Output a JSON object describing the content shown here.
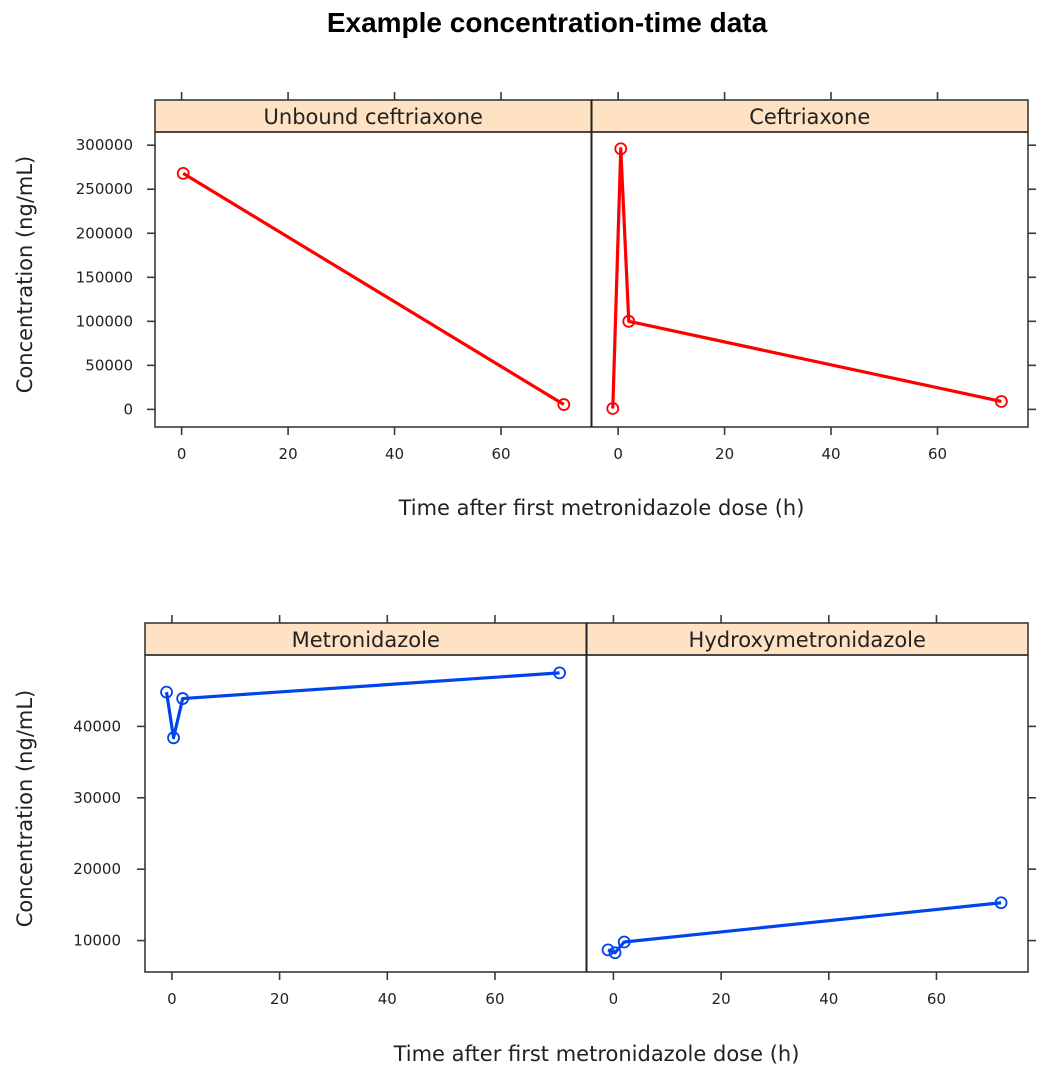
{
  "title": "Example concentration-time data",
  "chart_data": [
    {
      "type": "line",
      "xlabel": "Time after first metronidazole dose (h)",
      "ylabel": "Concentration (ng/mL)",
      "xlim": [
        -5,
        77
      ],
      "ylim": [
        -20000,
        315000
      ],
      "xticks": [
        0,
        20,
        40,
        60
      ],
      "yticks": [
        0,
        50000,
        100000,
        150000,
        200000,
        250000,
        300000
      ],
      "color": "#ff0000",
      "panels": [
        {
          "name": "Unbound ceftriaxone",
          "x": [
            0.3,
            71.8
          ],
          "y": [
            268000,
            5500
          ]
        },
        {
          "name": "Ceftriaxone",
          "x": [
            -1,
            0.5,
            2,
            72
          ],
          "y": [
            1000,
            296000,
            100000,
            9000
          ]
        }
      ]
    },
    {
      "type": "line",
      "xlabel": "Time after first metronidazole dose (h)",
      "ylabel": "Concentration (ng/mL)",
      "xlim": [
        -5,
        77
      ],
      "ylim": [
        5600,
        50000
      ],
      "xticks": [
        0,
        20,
        40,
        60
      ],
      "yticks": [
        10000,
        20000,
        30000,
        40000
      ],
      "color": "#0044ee",
      "panels": [
        {
          "name": "Metronidazole",
          "x": [
            -1,
            0.3,
            2,
            72
          ],
          "y": [
            44800,
            38400,
            43900,
            47500
          ]
        },
        {
          "name": "Hydroxymetronidazole",
          "x": [
            -1,
            0.3,
            2,
            72
          ],
          "y": [
            8700,
            8300,
            9800,
            15300
          ]
        }
      ]
    }
  ]
}
